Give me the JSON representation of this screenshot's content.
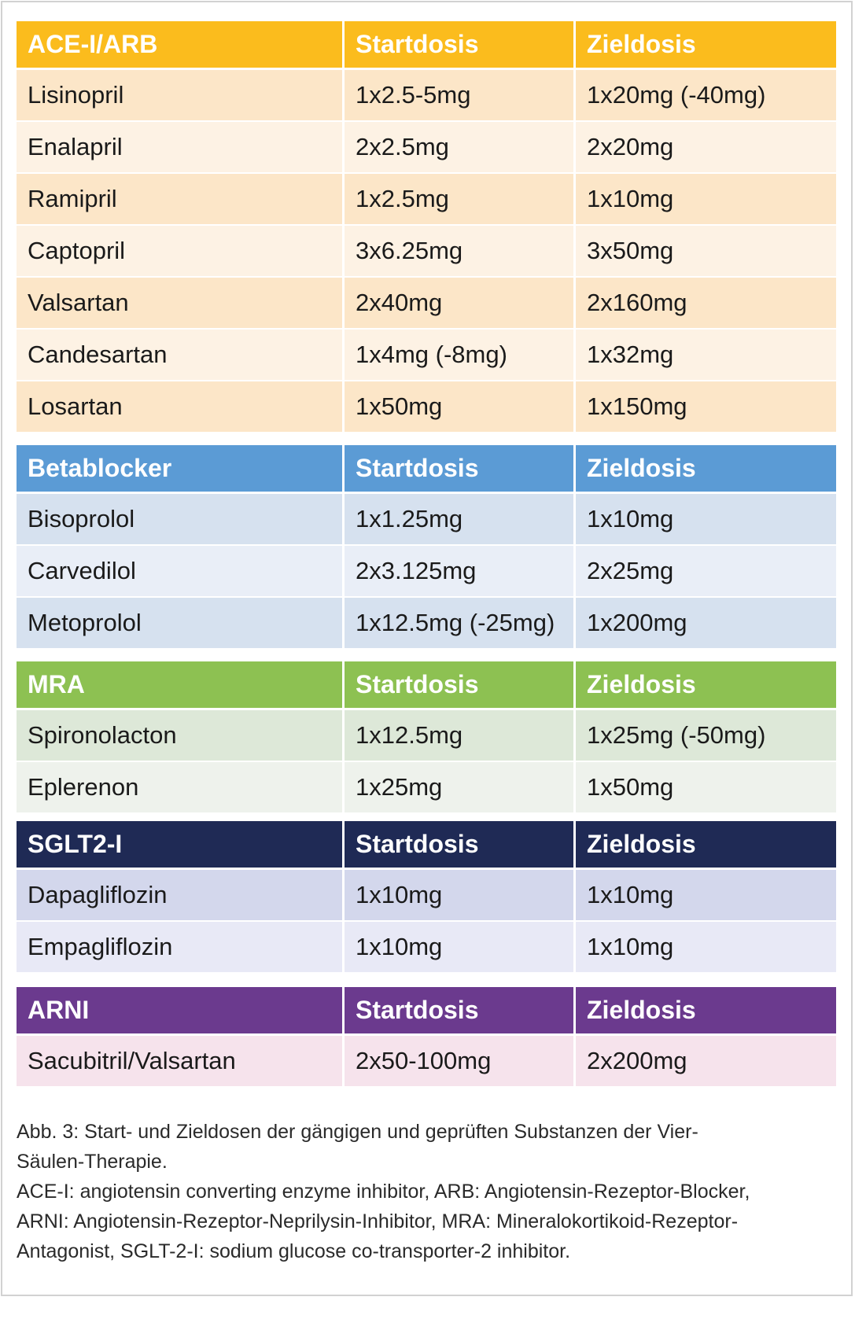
{
  "tables": [
    {
      "header": [
        "ACE-I/ARB",
        "Startdosis",
        "Zieldosis"
      ],
      "rows": [
        [
          "Lisinopril",
          "1x2.5-5mg",
          "1x20mg (-40mg)"
        ],
        [
          "Enalapril",
          "2x2.5mg",
          "2x20mg"
        ],
        [
          "Ramipril",
          "1x2.5mg",
          "1x10mg"
        ],
        [
          "Captopril",
          "3x6.25mg",
          "3x50mg"
        ],
        [
          "Valsartan",
          "2x40mg",
          "2x160mg"
        ],
        [
          "Candesartan",
          "1x4mg (-8mg)",
          "1x32mg"
        ],
        [
          "Losartan",
          "1x50mg",
          "1x150mg"
        ]
      ]
    },
    {
      "header": [
        "Betablocker",
        "Startdosis",
        "Zieldosis"
      ],
      "rows": [
        [
          "Bisoprolol",
          "1x1.25mg",
          "1x10mg"
        ],
        [
          "Carvedilol",
          "2x3.125mg",
          "2x25mg"
        ],
        [
          "Metoprolol",
          "1x12.5mg (-25mg)",
          "1x200mg"
        ]
      ]
    },
    {
      "header": [
        "MRA",
        "Startdosis",
        "Zieldosis"
      ],
      "rows": [
        [
          "Spironolacton",
          "1x12.5mg",
          "1x25mg (-50mg)"
        ],
        [
          "Eplerenon",
          "1x25mg",
          "1x50mg"
        ]
      ]
    },
    {
      "header": [
        "SGLT2-I",
        "Startdosis",
        "Zieldosis"
      ],
      "rows": [
        [
          "Dapagliflozin",
          "1x10mg",
          "1x10mg"
        ],
        [
          "Empagliflozin",
          "1x10mg",
          "1x10mg"
        ]
      ]
    },
    {
      "header": [
        "ARNI",
        "Startdosis",
        "Zieldosis"
      ],
      "rows": [
        [
          "Sacubitril/Valsartan",
          "2x50-100mg",
          "2x200mg"
        ]
      ]
    }
  ],
  "caption": {
    "line1": "Abb. 3: Start- und Zieldosen der gängigen und geprüften Substanzen der Vier-",
    "line2": "Säulen-Therapie.",
    "line3": "ACE-I: angiotensin converting enzyme inhibitor, ARB: Angiotensin-Rezeptor-Blocker,",
    "line4": "ARNI: Angiotensin-Rezeptor-Neprilysin-Inhibitor, MRA: Mineralokortikoid-Rezeptor-",
    "line5": "Antagonist, SGLT-2-I: sodium glucose co-transporter-2 inhibitor."
  },
  "colors": {
    "ace_header": "#fbbc1d",
    "beta_header": "#5b9bd5",
    "mra_header": "#8dc152",
    "sglt2_header": "#1f2a55",
    "arni_header": "#6b3a8e"
  }
}
